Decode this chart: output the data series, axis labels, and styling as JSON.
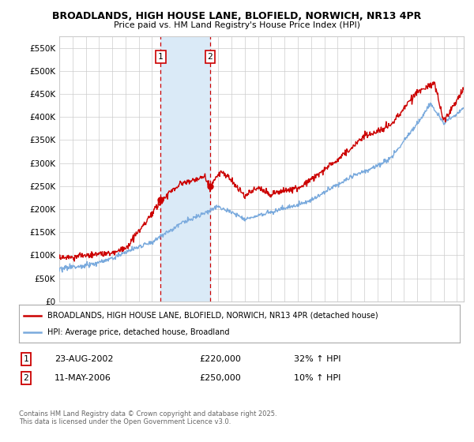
{
  "title_line1": "BROADLANDS, HIGH HOUSE LANE, BLOFIELD, NORWICH, NR13 4PR",
  "title_line2": "Price paid vs. HM Land Registry's House Price Index (HPI)",
  "ylabel_ticks": [
    "£0",
    "£50K",
    "£100K",
    "£150K",
    "£200K",
    "£250K",
    "£300K",
    "£350K",
    "£400K",
    "£450K",
    "£500K",
    "£550K"
  ],
  "ytick_values": [
    0,
    50000,
    100000,
    150000,
    200000,
    250000,
    300000,
    350000,
    400000,
    450000,
    500000,
    550000
  ],
  "ylim": [
    0,
    575000
  ],
  "xlim_start": 1995.0,
  "xlim_end": 2025.5,
  "xticks": [
    1995,
    1996,
    1997,
    1998,
    1999,
    2000,
    2001,
    2002,
    2003,
    2004,
    2005,
    2006,
    2007,
    2008,
    2009,
    2010,
    2011,
    2012,
    2013,
    2014,
    2015,
    2016,
    2017,
    2018,
    2019,
    2020,
    2021,
    2022,
    2023,
    2024,
    2025
  ],
  "red_color": "#cc0000",
  "blue_color": "#7aaadd",
  "vline_color": "#cc0000",
  "shade_color": "#daeaf7",
  "legend_label_red": "BROADLANDS, HIGH HOUSE LANE, BLOFIELD, NORWICH, NR13 4PR (detached house)",
  "legend_label_blue": "HPI: Average price, detached house, Broadland",
  "purchase1_label": "1",
  "purchase1_date": "23-AUG-2002",
  "purchase1_price": "£220,000",
  "purchase1_hpi": "32% ↑ HPI",
  "purchase1_x": 2002.65,
  "purchase1_y": 220000,
  "purchase2_label": "2",
  "purchase2_date": "11-MAY-2006",
  "purchase2_price": "£250,000",
  "purchase2_hpi": "10% ↑ HPI",
  "purchase2_x": 2006.37,
  "purchase2_y": 250000,
  "footnote": "Contains HM Land Registry data © Crown copyright and database right 2025.\nThis data is licensed under the Open Government Licence v3.0.",
  "background_color": "#ffffff",
  "plot_bg_color": "#ffffff",
  "grid_color": "#cccccc"
}
